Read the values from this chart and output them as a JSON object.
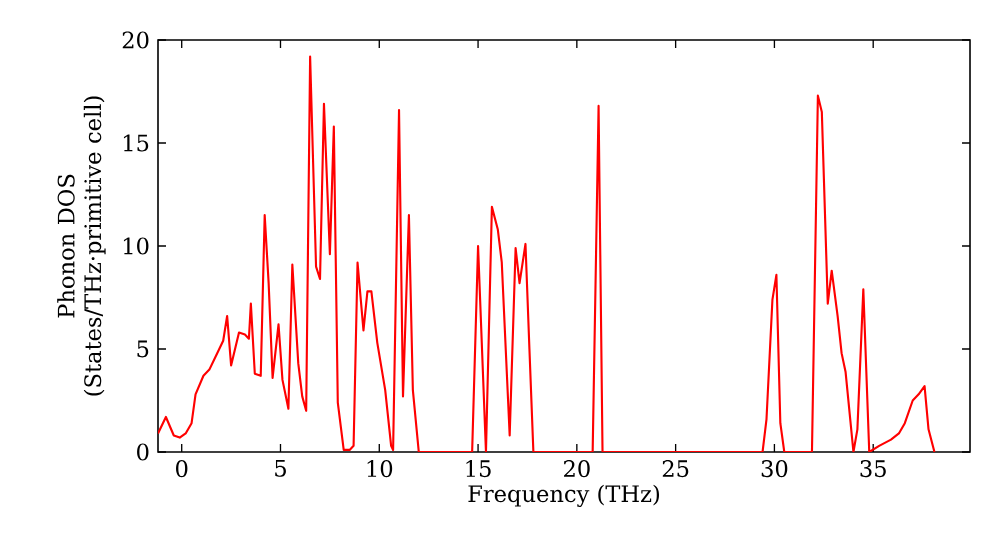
{
  "chart_data": {
    "type": "line",
    "xlabel": "Frequency (THz)",
    "ylabel": "Phonon DOS (States/THz·primitive cell)",
    "xlim": [
      -1.2,
      39.9
    ],
    "ylim": [
      0,
      20
    ],
    "xticks": [
      0,
      5,
      10,
      15,
      20,
      25,
      30,
      35
    ],
    "yticks": [
      0,
      5,
      10,
      15,
      20
    ],
    "series": [
      {
        "color": "#ff0000",
        "x": [
          -1.2,
          -0.8,
          -0.4,
          -0.1,
          0.2,
          0.5,
          0.7,
          1.1,
          1.4,
          1.7,
          2.1,
          2.3,
          2.5,
          2.9,
          3.2,
          3.4,
          3.5,
          3.7,
          4.0,
          4.2,
          4.4,
          4.6,
          4.9,
          5.1,
          5.4,
          5.6,
          5.9,
          6.1,
          6.3,
          6.5,
          6.8,
          7.0,
          7.2,
          7.5,
          7.7,
          7.9,
          8.2,
          8.5,
          8.7,
          8.9,
          9.2,
          9.4,
          9.6,
          9.9,
          10.3,
          10.6,
          10.7,
          11.0,
          11.2,
          11.5,
          11.7,
          12.0,
          14.7,
          15.0,
          15.4,
          15.7,
          16.0,
          16.2,
          16.6,
          16.9,
          17.1,
          17.4,
          17.6,
          17.8,
          20.8,
          21.1,
          21.3,
          29.4,
          29.6,
          29.9,
          30.1,
          30.3,
          30.5,
          31.9,
          32.2,
          32.4,
          32.7,
          32.9,
          33.2,
          33.4,
          33.6,
          34.0,
          34.2,
          34.5,
          34.8,
          35.3,
          35.9,
          36.3,
          36.6,
          37.0,
          37.3,
          37.6,
          37.8,
          38.1
        ],
        "values": [
          0.9,
          1.7,
          0.8,
          0.7,
          0.9,
          1.4,
          2.8,
          3.7,
          4.0,
          4.6,
          5.4,
          6.6,
          4.2,
          5.8,
          5.7,
          5.5,
          7.2,
          3.8,
          3.7,
          11.5,
          8.2,
          3.6,
          6.2,
          3.5,
          2.1,
          9.1,
          4.3,
          2.7,
          2.0,
          19.2,
          9.0,
          8.4,
          16.9,
          9.6,
          15.8,
          2.4,
          0.1,
          0.1,
          0.3,
          9.2,
          5.9,
          7.8,
          7.8,
          5.3,
          3.0,
          0.3,
          0.1,
          16.6,
          2.7,
          11.5,
          3.0,
          0,
          0,
          10.0,
          0,
          11.9,
          10.8,
          9.2,
          0.8,
          9.9,
          8.2,
          10.1,
          5.0,
          0,
          0,
          16.8,
          0,
          0,
          1.6,
          7.4,
          8.6,
          1.4,
          0,
          0,
          17.3,
          16.5,
          7.2,
          8.8,
          6.6,
          4.8,
          3.9,
          0,
          1.1,
          7.9,
          0,
          0.3,
          0.6,
          0.9,
          1.4,
          2.5,
          2.8,
          3.2,
          1.1,
          0
        ]
      }
    ]
  }
}
